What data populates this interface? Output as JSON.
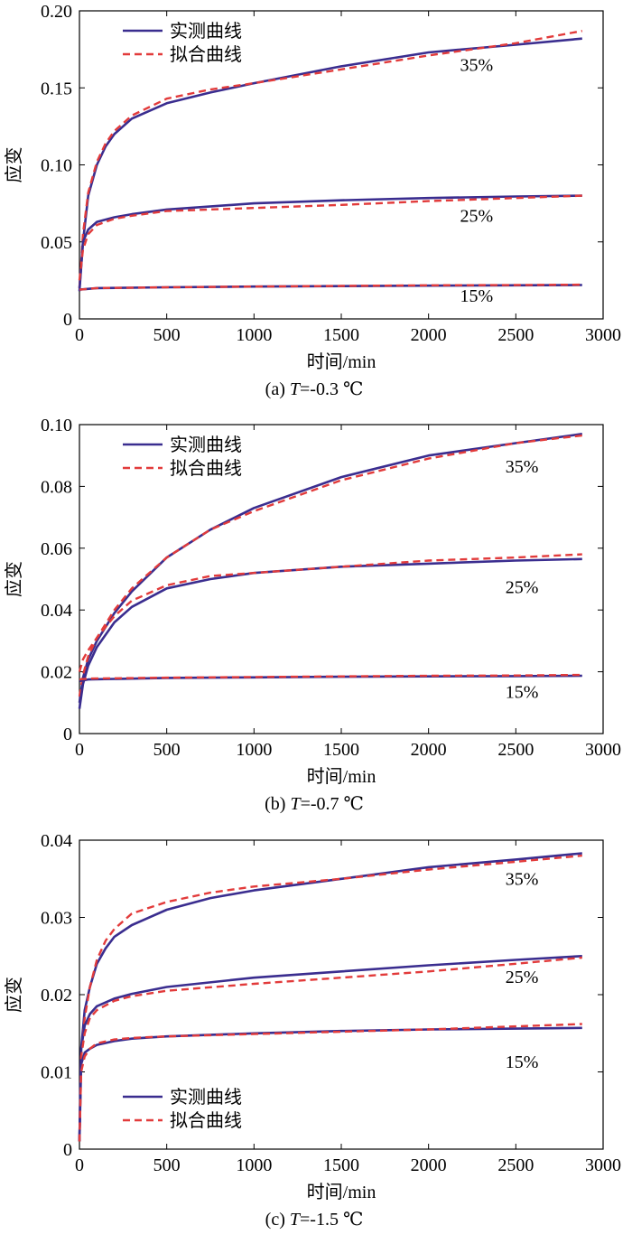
{
  "figure": {
    "measured_color": "#3a2d8f",
    "fitted_color": "#e23b3b"
  },
  "chart_data": [
    {
      "type": "line",
      "id": "a",
      "caption_prefix": "(a) ",
      "caption_var": "T",
      "caption_suffix": "=-0.3 ℃",
      "xlabel": "时间/min",
      "ylabel": "应变",
      "xlim": [
        0,
        3000
      ],
      "ylim": [
        0,
        0.2
      ],
      "xticks": [
        0,
        500,
        1000,
        1500,
        2000,
        2500,
        3000
      ],
      "xtick_labels": [
        "0",
        "500",
        "1000",
        "1500",
        "2000",
        "2500",
        "3000"
      ],
      "yticks": [
        0,
        0.05,
        0.1,
        0.15,
        0.2
      ],
      "ytick_labels": [
        "0",
        "0.05",
        "0.10",
        "0.15",
        "0.20"
      ],
      "legend": {
        "position": "top-left",
        "measured": "实测曲线",
        "fitted": "拟合曲线"
      },
      "series": [
        {
          "label": "35%",
          "label_x": 2180,
          "label_y": 0.161,
          "measured": {
            "x": [
              0,
              20,
              50,
              100,
              150,
              200,
              300,
              500,
              750,
              1000,
              1500,
              2000,
              2500,
              2880
            ],
            "y": [
              0.02,
              0.05,
              0.08,
              0.1,
              0.112,
              0.12,
              0.13,
              0.14,
              0.147,
              0.153,
              0.164,
              0.173,
              0.178,
              0.182
            ]
          },
          "fitted": {
            "x": [
              0,
              20,
              50,
              100,
              150,
              200,
              300,
              500,
              750,
              1000,
              1500,
              2000,
              2500,
              2880
            ],
            "y": [
              0.02,
              0.055,
              0.082,
              0.102,
              0.114,
              0.122,
              0.132,
              0.143,
              0.149,
              0.153,
              0.162,
              0.171,
              0.179,
              0.187
            ]
          }
        },
        {
          "label": "25%",
          "label_x": 2180,
          "label_y": 0.063,
          "measured": {
            "x": [
              0,
              20,
              50,
              100,
              200,
              300,
              500,
              1000,
              1500,
              2000,
              2500,
              2880
            ],
            "y": [
              0.018,
              0.05,
              0.058,
              0.063,
              0.066,
              0.068,
              0.071,
              0.075,
              0.077,
              0.0785,
              0.0795,
              0.08
            ]
          },
          "fitted": {
            "x": [
              0,
              20,
              50,
              100,
              200,
              300,
              500,
              1000,
              1500,
              2000,
              2500,
              2880
            ],
            "y": [
              0.025,
              0.045,
              0.055,
              0.061,
              0.065,
              0.067,
              0.07,
              0.072,
              0.074,
              0.0765,
              0.0785,
              0.08
            ]
          }
        },
        {
          "label": "15%",
          "label_x": 2180,
          "label_y": 0.011,
          "measured": {
            "x": [
              0,
              100,
              500,
              1000,
              1500,
              2000,
              2500,
              2880
            ],
            "y": [
              0.019,
              0.02,
              0.0205,
              0.021,
              0.0213,
              0.0216,
              0.0218,
              0.022
            ]
          },
          "fitted": {
            "x": [
              0,
              100,
              500,
              1000,
              1500,
              2000,
              2500,
              2880
            ],
            "y": [
              0.019,
              0.02,
              0.0205,
              0.021,
              0.0214,
              0.0218,
              0.022,
              0.0222
            ]
          }
        }
      ]
    },
    {
      "type": "line",
      "id": "b",
      "caption_prefix": "(b) ",
      "caption_var": "T",
      "caption_suffix": "=-0.7 ℃",
      "xlabel": "时间/min",
      "ylabel": "应变",
      "xlim": [
        0,
        3000
      ],
      "ylim": [
        0,
        0.1
      ],
      "xticks": [
        0,
        500,
        1000,
        1500,
        2000,
        2500,
        3000
      ],
      "xtick_labels": [
        "0",
        "500",
        "1000",
        "1500",
        "2000",
        "2500",
        "3000"
      ],
      "yticks": [
        0,
        0.02,
        0.04,
        0.06,
        0.08,
        0.1
      ],
      "ytick_labels": [
        "0",
        "0.02",
        "0.04",
        "0.06",
        "0.08",
        "0.10"
      ],
      "legend": {
        "position": "top-left",
        "measured": "实测曲线",
        "fitted": "拟合曲线"
      },
      "series": [
        {
          "label": "35%",
          "label_x": 2440,
          "label_y": 0.0845,
          "measured": {
            "x": [
              0,
              20,
              50,
              100,
              200,
              300,
              500,
              750,
              1000,
              1500,
              2000,
              2500,
              2880
            ],
            "y": [
              0.01,
              0.018,
              0.024,
              0.03,
              0.039,
              0.046,
              0.057,
              0.066,
              0.073,
              0.083,
              0.09,
              0.094,
              0.097
            ]
          },
          "fitted": {
            "x": [
              0,
              20,
              50,
              100,
              200,
              300,
              500,
              750,
              1000,
              1500,
              2000,
              2500,
              2880
            ],
            "y": [
              0.012,
              0.019,
              0.025,
              0.031,
              0.04,
              0.047,
              0.057,
              0.066,
              0.072,
              0.082,
              0.089,
              0.094,
              0.0965
            ]
          }
        },
        {
          "label": "25%",
          "label_x": 2440,
          "label_y": 0.0455,
          "measured": {
            "x": [
              0,
              20,
              50,
              100,
              200,
              300,
              500,
              750,
              1000,
              1500,
              2000,
              2500,
              2880
            ],
            "y": [
              0.008,
              0.016,
              0.022,
              0.028,
              0.036,
              0.041,
              0.047,
              0.05,
              0.052,
              0.054,
              0.055,
              0.056,
              0.0565
            ]
          },
          "fitted": {
            "x": [
              0,
              20,
              50,
              100,
              200,
              300,
              500,
              750,
              1000,
              1500,
              2000,
              2500,
              2880
            ],
            "y": [
              0.02,
              0.024,
              0.027,
              0.031,
              0.038,
              0.043,
              0.048,
              0.051,
              0.052,
              0.054,
              0.056,
              0.057,
              0.058
            ]
          }
        },
        {
          "label": "15%",
          "label_x": 2440,
          "label_y": 0.0115,
          "measured": {
            "x": [
              0,
              50,
              500,
              1000,
              1500,
              2000,
              2500,
              2880
            ],
            "y": [
              0.017,
              0.0175,
              0.018,
              0.0182,
              0.0184,
              0.0185,
              0.0186,
              0.0187
            ]
          },
          "fitted": {
            "x": [
              0,
              50,
              500,
              1000,
              1500,
              2000,
              2500,
              2880
            ],
            "y": [
              0.0175,
              0.0178,
              0.0181,
              0.0183,
              0.0185,
              0.0187,
              0.0188,
              0.019
            ]
          }
        }
      ]
    },
    {
      "type": "line",
      "id": "c",
      "caption_prefix": "(c) ",
      "caption_var": "T",
      "caption_suffix": "=-1.5 ℃",
      "xlabel": "时间/min",
      "ylabel": "应变",
      "xlim": [
        0,
        3000
      ],
      "ylim": [
        0,
        0.04
      ],
      "xticks": [
        0,
        500,
        1000,
        1500,
        2000,
        2500,
        3000
      ],
      "xtick_labels": [
        "0",
        "500",
        "1000",
        "1500",
        "2000",
        "2500",
        "3000"
      ],
      "yticks": [
        0,
        0.01,
        0.02,
        0.03,
        0.04
      ],
      "ytick_labels": [
        "0",
        "0.01",
        "0.02",
        "0.03",
        "0.04"
      ],
      "legend": {
        "position": "bottom-left",
        "measured": "实测曲线",
        "fitted": "拟合曲线"
      },
      "series": [
        {
          "label": "35%",
          "label_x": 2440,
          "label_y": 0.0342,
          "measured": {
            "x": [
              0,
              10,
              30,
              60,
              100,
              150,
              200,
              300,
              500,
              750,
              1000,
              1500,
              2000,
              2500,
              2880
            ],
            "y": [
              0.001,
              0.013,
              0.018,
              0.021,
              0.024,
              0.026,
              0.0275,
              0.029,
              0.031,
              0.0325,
              0.0335,
              0.035,
              0.0365,
              0.0375,
              0.0383
            ]
          },
          "fitted": {
            "x": [
              0,
              10,
              30,
              60,
              100,
              150,
              200,
              300,
              500,
              750,
              1000,
              1500,
              2000,
              2500,
              2880
            ],
            "y": [
              0.001,
              0.012,
              0.017,
              0.021,
              0.0245,
              0.027,
              0.0285,
              0.0305,
              0.032,
              0.0332,
              0.034,
              0.035,
              0.0362,
              0.0372,
              0.038
            ]
          }
        },
        {
          "label": "25%",
          "label_x": 2440,
          "label_y": 0.0215,
          "measured": {
            "x": [
              0,
              10,
              30,
              60,
              100,
              200,
              300,
              500,
              1000,
              1500,
              2000,
              2500,
              2880
            ],
            "y": [
              0.001,
              0.013,
              0.016,
              0.0175,
              0.0185,
              0.0195,
              0.0201,
              0.021,
              0.0222,
              0.023,
              0.0238,
              0.0245,
              0.025
            ]
          },
          "fitted": {
            "x": [
              0,
              10,
              30,
              60,
              100,
              200,
              300,
              500,
              1000,
              1500,
              2000,
              2500,
              2880
            ],
            "y": [
              0.001,
              0.012,
              0.015,
              0.017,
              0.018,
              0.0192,
              0.0198,
              0.0205,
              0.0214,
              0.0222,
              0.023,
              0.024,
              0.0248
            ]
          }
        },
        {
          "label": "15%",
          "label_x": 2440,
          "label_y": 0.0105,
          "measured": {
            "x": [
              0,
              10,
              30,
              60,
              100,
              200,
              300,
              500,
              1000,
              1500,
              2000,
              2500,
              2880
            ],
            "y": [
              0.001,
              0.011,
              0.0125,
              0.013,
              0.0135,
              0.014,
              0.0143,
              0.0146,
              0.015,
              0.0153,
              0.0155,
              0.0156,
              0.0157
            ]
          },
          "fitted": {
            "x": [
              0,
              10,
              30,
              60,
              100,
              200,
              300,
              500,
              1000,
              1500,
              2000,
              2500,
              2880
            ],
            "y": [
              0.001,
              0.01,
              0.012,
              0.013,
              0.0137,
              0.0142,
              0.0144,
              0.0146,
              0.0149,
              0.0152,
              0.0155,
              0.0159,
              0.0162
            ]
          }
        }
      ]
    }
  ]
}
